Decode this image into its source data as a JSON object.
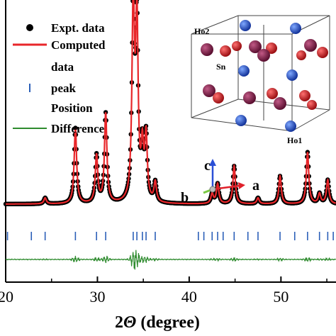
{
  "chart_data": {
    "type": "line",
    "xlabel_prefix": "2",
    "xlabel_symbol": "Θ",
    "xlabel_suffix": " (degree)",
    "xlim": [
      20,
      56
    ],
    "x_ticks": [
      20,
      30,
      40,
      50
    ],
    "x_tick_labels": [
      "20",
      "30",
      "40",
      "50"
    ],
    "legend": [
      {
        "label": "Expt. data",
        "marker": "dot",
        "color": "#000000"
      },
      {
        "label": "Computed",
        "marker": "line",
        "color": "#e8262a"
      },
      {
        "label": "data",
        "marker": "none",
        "color": "#000000"
      },
      {
        "label": "peak",
        "marker": "bar",
        "color": "#2b5fb8"
      },
      {
        "label": "Position",
        "marker": "none",
        "color": "#000000"
      },
      {
        "label": "Difference",
        "marker": "line",
        "color": "#2e8b2e"
      }
    ],
    "baseline": 0.05,
    "peaks": [
      {
        "x": 24.3,
        "h": 0.03
      },
      {
        "x": 27.6,
        "h": 0.38
      },
      {
        "x": 29.9,
        "h": 0.24
      },
      {
        "x": 30.9,
        "h": 0.45
      },
      {
        "x": 33.9,
        "h": 1.0
      },
      {
        "x": 34.3,
        "h": 0.9
      },
      {
        "x": 34.9,
        "h": 0.25
      },
      {
        "x": 35.3,
        "h": 0.32
      },
      {
        "x": 36.3,
        "h": 0.1
      },
      {
        "x": 42.5,
        "h": 0.05
      },
      {
        "x": 43.1,
        "h": 0.1
      },
      {
        "x": 44.9,
        "h": 0.19
      },
      {
        "x": 47.5,
        "h": 0.03
      },
      {
        "x": 49.9,
        "h": 0.14
      },
      {
        "x": 52.9,
        "h": 0.26
      },
      {
        "x": 54.2,
        "h": 0.05
      },
      {
        "x": 55.1,
        "h": 0.12
      }
    ],
    "bragg_positions": [
      20.2,
      22.8,
      24.3,
      27.6,
      29.9,
      30.9,
      33.9,
      34.3,
      34.9,
      35.3,
      36.3,
      41.0,
      41.6,
      42.5,
      43.1,
      43.7,
      44.9,
      46.4,
      47.5,
      49.9,
      51.5,
      52.9,
      54.2,
      55.1,
      55.7
    ],
    "colors": {
      "expt": "#000000",
      "computed": "#e8262a",
      "bragg": "#2b5fb8",
      "difference": "#2e8b2e"
    }
  },
  "inset": {
    "labels": {
      "ho2": "Ho2",
      "sn": "Sn",
      "ho1": "Ho1"
    },
    "colors": {
      "ho": "#8b1c4e",
      "sn": "#d8202a",
      "o": "#2c5fd6"
    }
  },
  "axes_indicator": {
    "labels": {
      "a": "a",
      "b": "b",
      "c": "c"
    },
    "colors": {
      "a": "#e0202a",
      "b": "#7ac943",
      "c": "#2b4fd6"
    }
  }
}
